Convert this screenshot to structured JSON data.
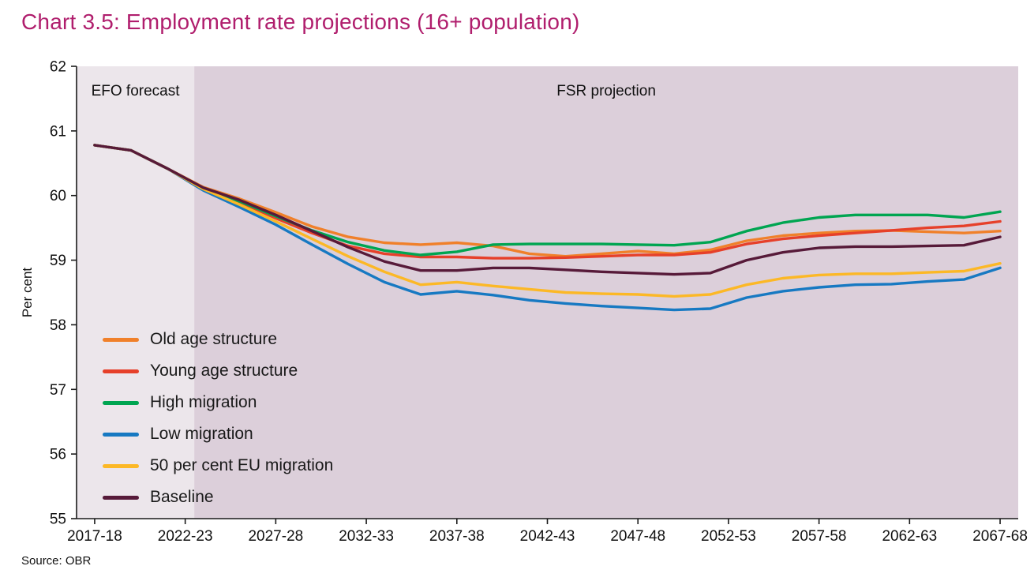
{
  "title": "Chart 3.5: Employment rate projections (16+ population)",
  "title_color": "#b01e6d",
  "source": "Source: OBR",
  "chart_data": {
    "type": "line",
    "title": "Chart 3.5: Employment rate projections (16+ population)",
    "ylabel": "Per cent",
    "ylim": [
      55,
      62
    ],
    "yticks": [
      55,
      56,
      57,
      58,
      59,
      60,
      61,
      62
    ],
    "xdomain": [
      2016,
      2068
    ],
    "xticks": [
      2017,
      2022,
      2027,
      2032,
      2037,
      2042,
      2047,
      2052,
      2057,
      2062,
      2067
    ],
    "xtick_labels": [
      "2017-18",
      "2022-23",
      "2027-28",
      "2032-33",
      "2037-38",
      "2042-43",
      "2047-48",
      "2052-53",
      "2057-58",
      "2062-63",
      "2067-68"
    ],
    "grid": false,
    "legend_position": "inside-left-lower",
    "regions": [
      {
        "label": "EFO forecast",
        "from": 2016,
        "to": 2022.5,
        "color": "#ece6eb"
      },
      {
        "label": "FSR projection",
        "from": 2022.5,
        "to": 2068,
        "color": "#dccfda"
      }
    ],
    "annotations": [
      {
        "text": "EFO forecast",
        "x": 2019.25,
        "y": 61.55
      },
      {
        "text": "FSR projection",
        "x": 2045.25,
        "y": 61.55
      }
    ],
    "x": [
      2017,
      2019,
      2021,
      2023,
      2025,
      2027,
      2029,
      2031,
      2033,
      2035,
      2037,
      2039,
      2041,
      2043,
      2045,
      2047,
      2049,
      2051,
      2053,
      2055,
      2057,
      2059,
      2061,
      2063,
      2065,
      2067
    ],
    "series": [
      {
        "name": "Old age structure",
        "color": "#f0802a",
        "values": [
          60.78,
          60.7,
          60.42,
          60.13,
          59.95,
          59.74,
          59.52,
          59.36,
          59.27,
          59.24,
          59.27,
          59.22,
          59.1,
          59.06,
          59.1,
          59.14,
          59.1,
          59.16,
          59.3,
          59.38,
          59.42,
          59.45,
          59.46,
          59.44,
          59.42,
          59.45
        ]
      },
      {
        "name": "Young age structure",
        "color": "#e6402a",
        "values": [
          60.78,
          60.7,
          60.42,
          60.11,
          59.9,
          59.65,
          59.42,
          59.22,
          59.1,
          59.05,
          59.05,
          59.03,
          59.03,
          59.04,
          59.06,
          59.08,
          59.08,
          59.12,
          59.25,
          59.33,
          59.38,
          59.42,
          59.46,
          59.5,
          59.53,
          59.6
        ]
      },
      {
        "name": "High migration",
        "color": "#00a551",
        "values": [
          60.78,
          60.7,
          60.42,
          60.11,
          59.91,
          59.68,
          59.46,
          59.28,
          59.15,
          59.08,
          59.13,
          59.24,
          59.25,
          59.25,
          59.25,
          59.24,
          59.23,
          59.28,
          59.45,
          59.58,
          59.66,
          59.7,
          59.7,
          59.7,
          59.66,
          59.75
        ]
      },
      {
        "name": "Low migration",
        "color": "#1779c2",
        "values": [
          60.78,
          60.7,
          60.42,
          60.08,
          59.82,
          59.55,
          59.24,
          58.94,
          58.66,
          58.47,
          58.52,
          58.46,
          58.38,
          58.33,
          58.29,
          58.26,
          58.23,
          58.25,
          58.42,
          58.52,
          58.58,
          58.62,
          58.63,
          58.67,
          58.7,
          58.88
        ]
      },
      {
        "name": "50 per cent EU migration",
        "color": "#fcb826",
        "values": [
          60.78,
          60.7,
          60.42,
          60.1,
          59.86,
          59.6,
          59.33,
          59.06,
          58.82,
          58.62,
          58.66,
          58.6,
          58.55,
          58.5,
          58.48,
          58.47,
          58.44,
          58.47,
          58.62,
          58.72,
          58.77,
          58.79,
          58.79,
          58.81,
          58.83,
          58.95
        ]
      },
      {
        "name": "Baseline",
        "color": "#571a39",
        "values": [
          60.78,
          60.7,
          60.42,
          60.12,
          59.93,
          59.7,
          59.45,
          59.2,
          58.98,
          58.84,
          58.84,
          58.88,
          58.88,
          58.85,
          58.82,
          58.8,
          58.78,
          58.8,
          59.0,
          59.12,
          59.19,
          59.21,
          59.21,
          59.22,
          59.23,
          59.36
        ]
      }
    ]
  }
}
